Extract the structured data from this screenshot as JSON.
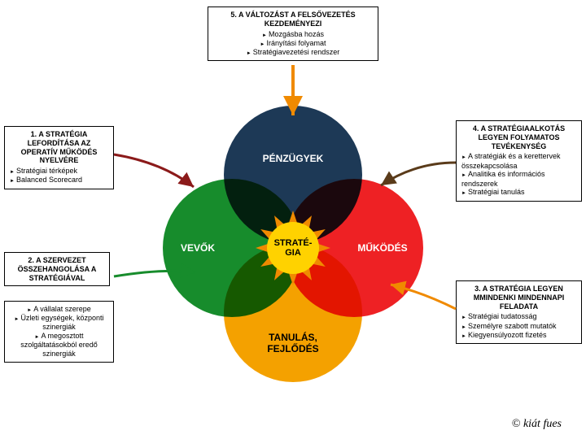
{
  "colors": {
    "top_circle": "#1d3956",
    "left_circle": "#178c2c",
    "right_circle": "#ee2124",
    "bottom_circle": "#f4a100",
    "sun_core": "#ffd200",
    "sun_ray": "#f08a00",
    "arrow_orange": "#f08a00",
    "arrow_darkred": "#8b1a1a",
    "arrow_green": "#178c2c",
    "arrow_brown": "#5a3b1a",
    "text_white": "#ffffff"
  },
  "venn": {
    "top": "PÉNZÜGYEK",
    "left": "VEVŐK",
    "right": "MŰKÖDÉS",
    "bottom": "TANULÁS, FEJLŐDÉS",
    "center": "STRATÉ-\nGIA"
  },
  "box_top": {
    "title": "5. A VÁLTOZÁST A FELSŐVEZETÉS KEZDEMÉNYEZI",
    "items": [
      "Mozgásba hozás",
      "Irányítási folyamat",
      "Stratégiavezetési rendszer"
    ]
  },
  "box_1": {
    "title": "1. A STRATÉGIA LEFORDÍTÁSA AZ OPERATÍV MŰKÖDÉS NYELVÉRE",
    "items": [
      "Stratégiai térképek",
      "Balanced Scorecard"
    ]
  },
  "box_2a": {
    "title": "2. A SZERVEZET ÖSSZEHANGOLÁSA A STRATÉGIÁVAL"
  },
  "box_2b": {
    "items": [
      "A vállalat szerepe",
      "Üzleti egységek, központi szinergiák",
      "A megosztott szolgáltatásokból eredő szinergiák"
    ]
  },
  "box_3": {
    "title": "3. A STRATÉGIA LEGYEN MMINDENKI MINDENNAPI FELADATA",
    "items": [
      "Stratégiai tudatosság",
      "Személyre szabott mutatók",
      "Kiegyensúlyozott fizetés"
    ]
  },
  "box_4": {
    "title": "4. A STRATÉGIAALKOTÁS LEGYEN FOLYAMATOS TEVÉKENYSÉG",
    "items": [
      "A stratégiák és a kerettervek összekapcsolása",
      "Analitika és információs rendszerek",
      "Stratégiai tanulás"
    ]
  },
  "copyright": "©"
}
